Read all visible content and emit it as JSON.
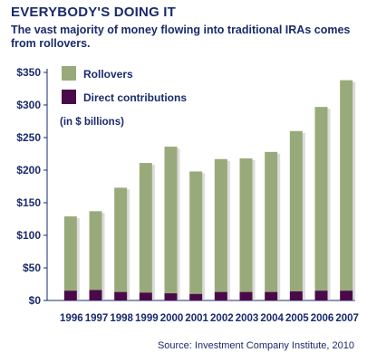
{
  "chart_data": {
    "type": "bar",
    "stacked": true,
    "title": "EVERYBODY'S DOING IT",
    "subtitle": "The vast majority of money flowing into traditional IRAs comes from rollovers.",
    "unit_note": "(in $ billions)",
    "categories": [
      "1996",
      "1997",
      "1998",
      "1999",
      "2000",
      "2001",
      "2002",
      "2003",
      "2004",
      "2005",
      "2006",
      "2007"
    ],
    "series": [
      {
        "name": "Direct contributions",
        "color": "#4a0a4a",
        "values": [
          15,
          16,
          13,
          12,
          11,
          10,
          13,
          13,
          13,
          14,
          15,
          15
        ]
      },
      {
        "name": "Rollovers",
        "color": "#99aa7a",
        "values": [
          114,
          121,
          160,
          199,
          225,
          188,
          204,
          205,
          215,
          246,
          282,
          323
        ]
      }
    ],
    "yticks": [
      "$0",
      "$50",
      "$100",
      "$150",
      "$200",
      "$250",
      "$300",
      "$350"
    ],
    "ylim": [
      0,
      350
    ],
    "grid": false,
    "legend": "top-left",
    "source": "Source: Investment Company Institute, 2010"
  }
}
